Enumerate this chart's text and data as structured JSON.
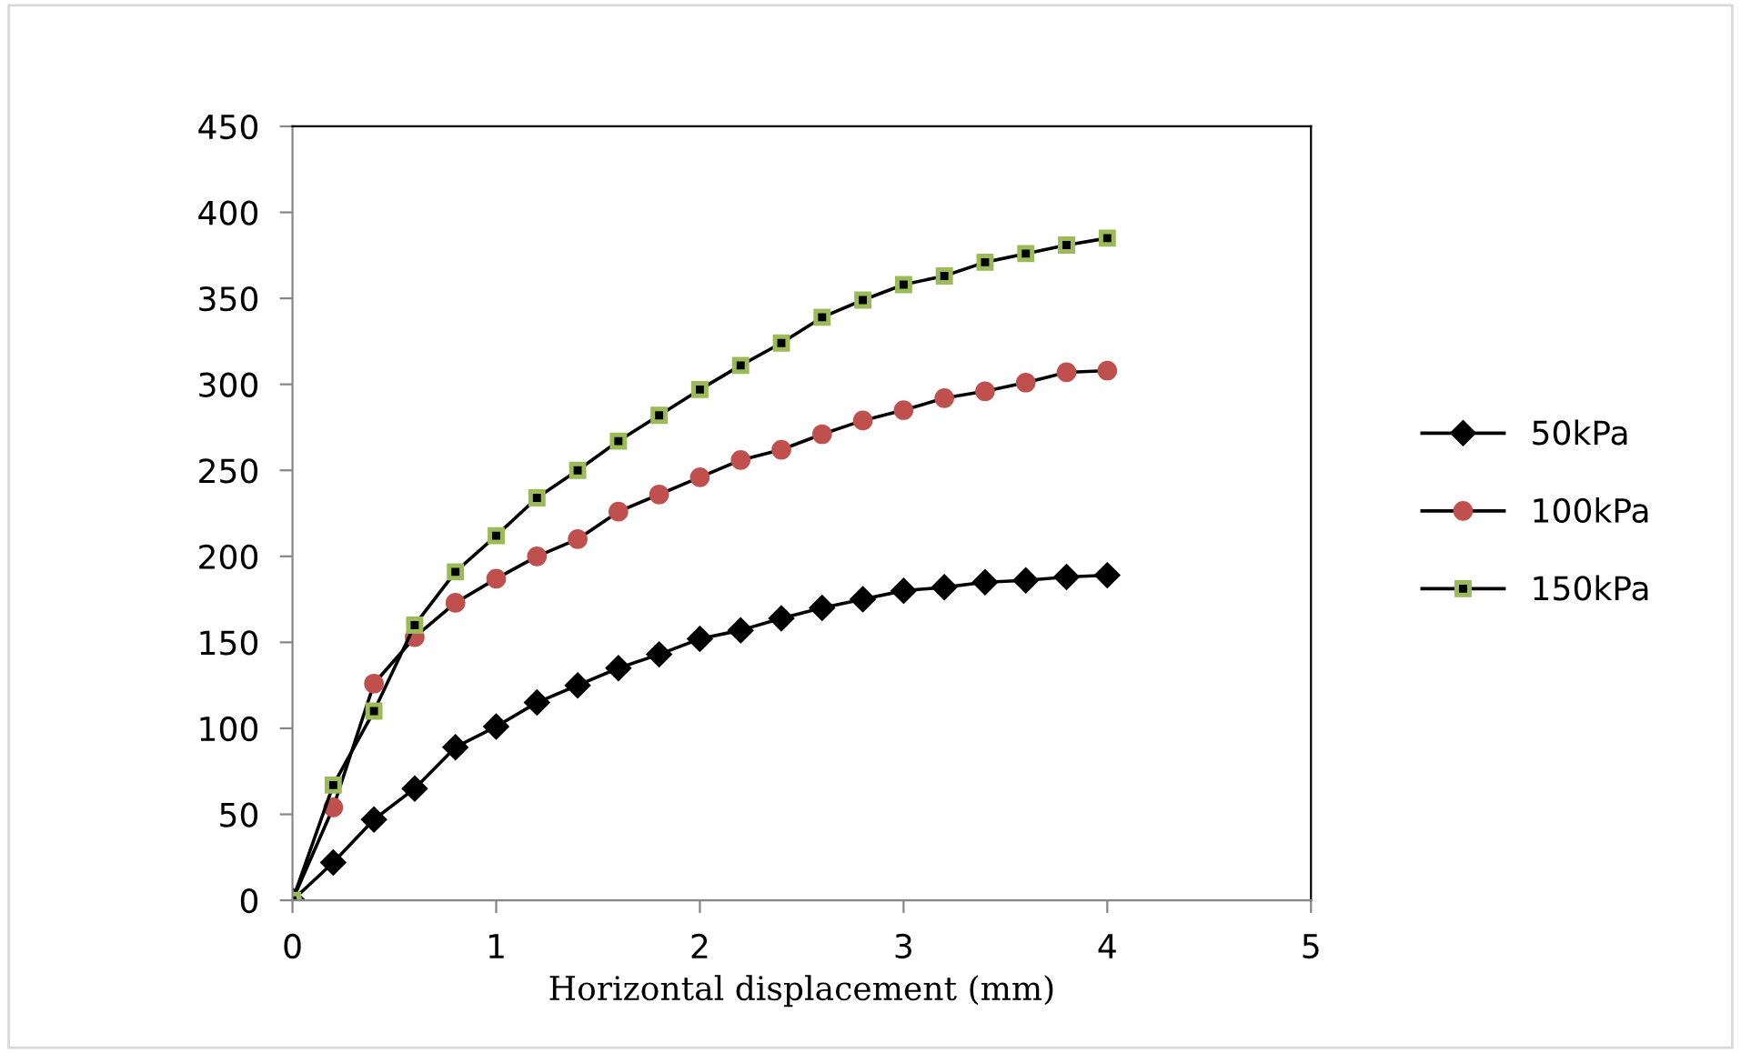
{
  "chart_data": {
    "type": "line",
    "xlabel": "Horizontal displacement (mm)",
    "x": [
      0,
      0.2,
      0.4,
      0.6,
      0.8,
      1.0,
      1.2,
      1.4,
      1.6,
      1.8,
      2.0,
      2.2,
      2.4,
      2.6,
      2.8,
      3.0,
      3.2,
      3.4,
      3.6,
      3.8,
      4.0
    ],
    "series": [
      {
        "name": "50kPa",
        "color": "#000000",
        "marker": "diamond",
        "values": [
          0,
          22,
          47,
          65,
          89,
          101,
          115,
          125,
          135,
          143,
          152,
          157,
          164,
          170,
          175,
          180,
          182,
          185,
          186,
          188,
          189
        ]
      },
      {
        "name": "100kPa",
        "color": "#c0504d",
        "marker": "circle",
        "values": [
          0,
          54,
          126,
          153,
          173,
          187,
          200,
          210,
          226,
          236,
          246,
          256,
          262,
          271,
          279,
          285,
          292,
          296,
          301,
          307,
          308
        ]
      },
      {
        "name": "150kPa",
        "color": "#9bbb59",
        "marker": "square",
        "values": [
          0,
          67,
          110,
          160,
          191,
          212,
          234,
          250,
          267,
          282,
          297,
          311,
          324,
          339,
          349,
          358,
          363,
          371,
          376,
          381,
          385
        ]
      }
    ],
    "xlim": [
      0,
      5
    ],
    "xticks": [
      0,
      1,
      2,
      3,
      4,
      5
    ],
    "ylim": [
      0,
      450
    ],
    "yticks": [
      0,
      50,
      100,
      150,
      200,
      250,
      300,
      350,
      400,
      450
    ],
    "grid": false,
    "legend": "right",
    "line_style": "solid"
  }
}
